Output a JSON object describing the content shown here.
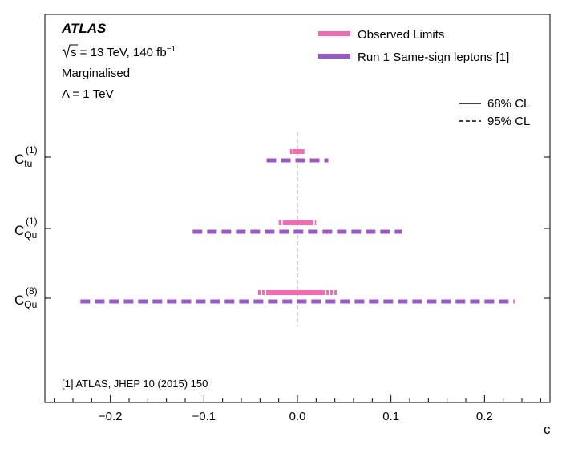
{
  "chart_data": {
    "type": "interval",
    "experiment": "ATLAS",
    "energy_label": "= 13 TeV, 140 fb",
    "energy_superscript": "−1",
    "sqrt_label": "s",
    "info_lines": [
      "Marginalised",
      "Λ = 1 TeV"
    ],
    "xlabel": "c",
    "xlim": [
      -0.27,
      0.27
    ],
    "xticks": [
      -0.2,
      -0.1,
      0.0,
      0.1,
      0.2
    ],
    "xtick_labels": [
      "−0.2",
      "−0.1",
      "0.0",
      "0.1",
      "0.2"
    ],
    "reference_line": 0.0,
    "footnote": "[1] ATLAS, JHEP 10 (2015) 150",
    "legend": {
      "placement": "top-right",
      "series": [
        {
          "name": "Observed Limits",
          "color": "#f06bb4"
        },
        {
          "name": "Run 1 Same-sign leptons [1]",
          "color": "#9b59c6"
        }
      ],
      "styles": [
        {
          "label": "68% CL",
          "style": "solid"
        },
        {
          "label": "95% CL",
          "style": "dashed"
        }
      ]
    },
    "parameters": [
      {
        "label_base": "C",
        "label_sub": "tu",
        "label_sup": "(1)",
        "observed": {
          "cl68": [
            -0.005,
            0.005
          ],
          "cl95": [
            -0.008,
            0.008
          ]
        },
        "run1": {
          "cl95": [
            -0.033,
            0.033
          ]
        }
      },
      {
        "label_base": "C",
        "label_sub": "Qu",
        "label_sup": "(1)",
        "observed": {
          "cl68": [
            -0.015,
            0.015
          ],
          "cl95": [
            -0.02,
            0.02
          ]
        },
        "run1": {
          "cl95": [
            -0.112,
            0.112
          ]
        }
      },
      {
        "label_base": "C",
        "label_sub": "Qu",
        "label_sup": "(8)",
        "observed": {
          "cl68": [
            -0.03,
            0.03
          ],
          "cl95": [
            -0.042,
            0.042
          ]
        },
        "run1": {
          "cl95": [
            -0.232,
            0.232
          ]
        }
      }
    ]
  }
}
